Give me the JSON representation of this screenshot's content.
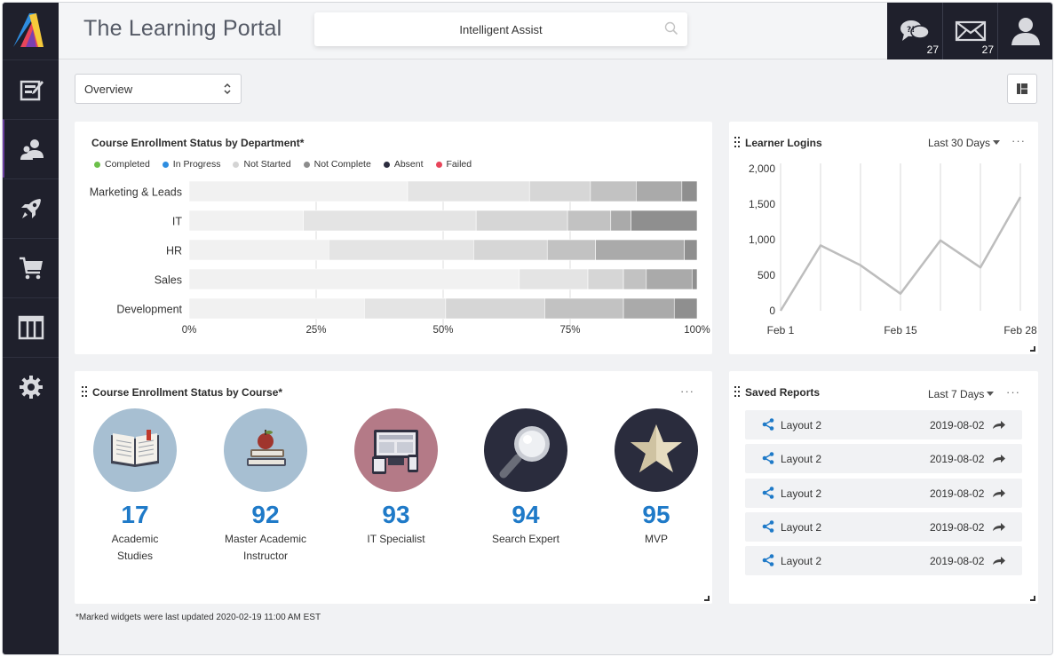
{
  "header": {
    "title": "The Learning Portal",
    "search_placeholder": "Intelligent Assist",
    "chat_count": "27",
    "mail_count": "27"
  },
  "sidebar": {
    "items": [
      {
        "icon": "edit-icon"
      },
      {
        "icon": "users-icon"
      },
      {
        "icon": "rocket-icon"
      },
      {
        "icon": "cart-icon"
      },
      {
        "icon": "table-icon"
      },
      {
        "icon": "gear-icon"
      }
    ]
  },
  "toolbar": {
    "view_select": "Overview"
  },
  "enrollment_dept": {
    "title": "Course Enrollment Status by Department*",
    "legend": [
      {
        "label": "Completed",
        "color": "#6cc04a"
      },
      {
        "label": "In Progress",
        "color": "#2e8de0"
      },
      {
        "label": "Not Started",
        "color": "#d4d4d4"
      },
      {
        "label": "Not Complete",
        "color": "#8c8c8c"
      },
      {
        "label": "Absent",
        "color": "#2c2d3f"
      },
      {
        "label": "Failed",
        "color": "#e8455a"
      }
    ]
  },
  "logins": {
    "title": "Learner Logins",
    "range": "Last 30 Days"
  },
  "enrollment_course": {
    "title": "Course Enrollment Status by Course*",
    "courses": [
      {
        "number": "17",
        "name_line1": "Academic",
        "name_line2": "Studies"
      },
      {
        "number": "92",
        "name_line1": "Master Academic",
        "name_line2": "Instructor"
      },
      {
        "number": "93",
        "name_line1": "IT Specialist",
        "name_line2": ""
      },
      {
        "number": "94",
        "name_line1": "Search Expert",
        "name_line2": ""
      },
      {
        "number": "95",
        "name_line1": "MVP",
        "name_line2": ""
      }
    ]
  },
  "saved_reports": {
    "title": "Saved Reports",
    "range": "Last 7 Days",
    "rows": [
      {
        "name": "Layout 2",
        "date": "2019-08-02"
      },
      {
        "name": "Layout 2",
        "date": "2019-08-02"
      },
      {
        "name": "Layout 2",
        "date": "2019-08-02"
      },
      {
        "name": "Layout 2",
        "date": "2019-08-02"
      },
      {
        "name": "Layout 2",
        "date": "2019-08-02"
      }
    ]
  },
  "footnote": "*Marked widgets were last updated 2020-02-19 11:00 AM EST",
  "chart_data": [
    {
      "type": "bar",
      "orientation": "horizontal",
      "stacked": true,
      "title": "Course Enrollment Status by Department*",
      "categories": [
        "Marketing & Leads",
        "IT",
        "HR",
        "Sales",
        "Development"
      ],
      "x_ticks": [
        "0%",
        "25%",
        "50%",
        "75%",
        "100%"
      ],
      "xlim": [
        0,
        100
      ],
      "segments": [
        [
          43,
          24,
          12,
          9,
          9,
          3
        ],
        [
          22.5,
          34,
          18,
          8.5,
          4,
          13
        ],
        [
          27.5,
          28.5,
          14.5,
          9.5,
          17.5,
          2.5
        ],
        [
          65,
          13.5,
          7,
          4.5,
          9,
          1
        ],
        [
          34.5,
          16,
          19.5,
          15.5,
          10,
          4.5
        ]
      ],
      "segment_colors": [
        "#f1f1f1",
        "#e4e4e4",
        "#d6d6d6",
        "#c2c2c2",
        "#aaaaaa",
        "#8f8f8f"
      ],
      "grid": true
    },
    {
      "type": "line",
      "title": "Learner Logins",
      "x": [
        "Feb 1",
        "Feb 8",
        "Feb 12",
        "Feb 15",
        "Feb 18",
        "Feb 22",
        "Feb 28"
      ],
      "x_tick_labels": [
        "Feb 1",
        "Feb 15",
        "Feb 28"
      ],
      "series": [
        {
          "values": [
            0,
            920,
            640,
            240,
            990,
            610,
            1600
          ],
          "color": "#bdbdbd"
        }
      ],
      "y_ticks": [
        "0",
        "500",
        "1,000",
        "1,500",
        "2,000"
      ],
      "ylim": [
        0,
        2000
      ],
      "grid": true
    }
  ]
}
